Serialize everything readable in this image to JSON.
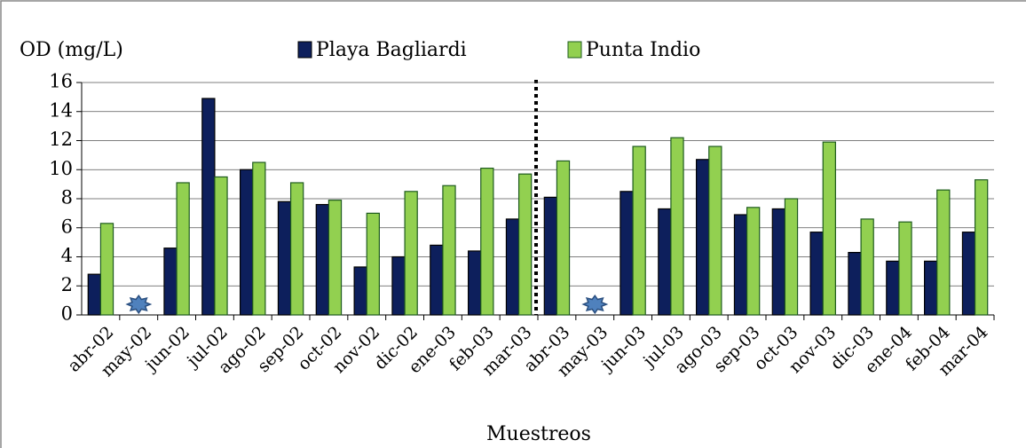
{
  "chart_data": {
    "type": "bar",
    "y_label": "OD (mg/L)",
    "x_label": "Muestreos",
    "categories": [
      "abr-02",
      "may-02",
      "jun-02",
      "jul-02",
      "ago-02",
      "sep-02",
      "oct-02",
      "nov-02",
      "dic-02",
      "ene-03",
      "feb-03",
      "mar-03",
      "abr-03",
      "may-03",
      "jun-03",
      "jul-03",
      "ago-03",
      "sep-03",
      "oct-03",
      "nov-03",
      "dic-03",
      "ene-04",
      "feb-04",
      "mar-04"
    ],
    "series": [
      {
        "name": "Playa Bagliardi",
        "color": "#0d1f5c",
        "values": [
          2.8,
          null,
          4.6,
          14.9,
          10.0,
          7.8,
          7.6,
          3.3,
          4.0,
          4.8,
          4.4,
          6.6,
          8.1,
          null,
          8.5,
          7.3,
          10.7,
          6.9,
          7.3,
          5.7,
          4.3,
          3.7,
          3.7,
          5.7
        ]
      },
      {
        "name": "Punta Indio",
        "color": "#92d050",
        "values": [
          6.3,
          null,
          9.1,
          9.5,
          10.5,
          9.1,
          7.9,
          7.0,
          8.5,
          8.9,
          10.1,
          9.7,
          10.6,
          null,
          11.6,
          12.2,
          11.6,
          7.4,
          8.0,
          11.9,
          6.6,
          6.4,
          8.6,
          9.3
        ]
      }
    ],
    "ylim": [
      0,
      16
    ],
    "yticks": [
      0,
      2,
      4,
      6,
      8,
      10,
      12,
      14,
      16
    ],
    "grid": true
  }
}
